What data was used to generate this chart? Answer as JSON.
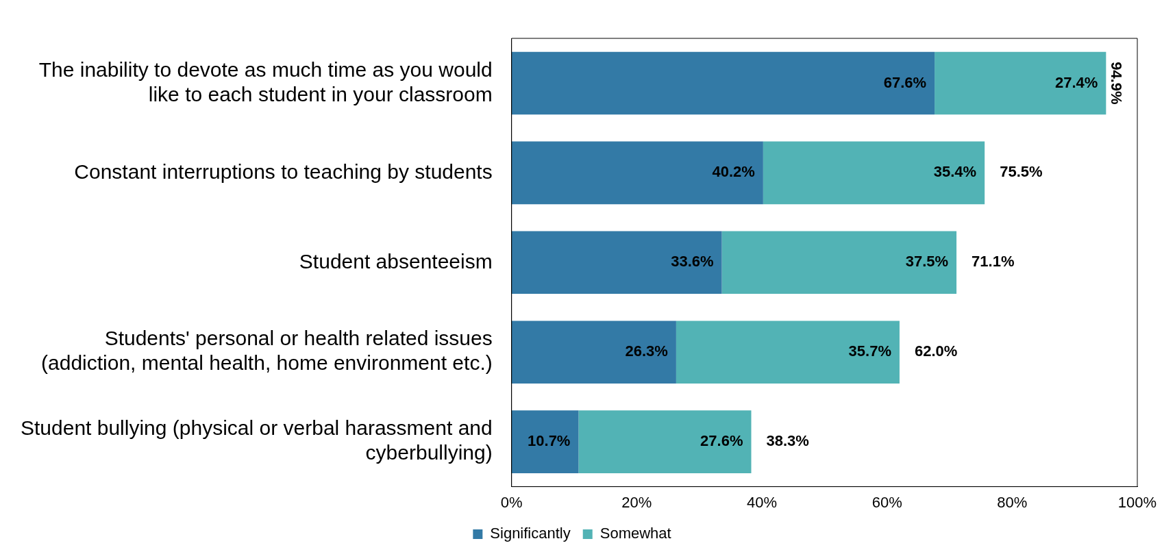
{
  "chart_data": {
    "type": "bar",
    "orientation": "horizontal",
    "stacked": true,
    "categories": [
      "The inability to devote as much time as you would like to each student in your classroom",
      "Constant interruptions to teaching by students",
      "Student absenteeism",
      "Students' personal or health related issues (addiction, mental health, home environment etc.)",
      "Student bullying (physical or verbal harassment and cyberbullying)"
    ],
    "series": [
      {
        "name": "Significantly",
        "color": "#337aa6",
        "values": [
          67.6,
          40.2,
          33.6,
          26.3,
          10.7
        ],
        "value_labels": [
          "67.6%",
          "40.2%",
          "33.6%",
          "26.3%",
          "10.7%"
        ]
      },
      {
        "name": "Somewhat",
        "color": "#52b3b5",
        "values": [
          27.4,
          35.4,
          37.5,
          35.7,
          27.6
        ],
        "value_labels": [
          "27.4%",
          "35.4%",
          "37.5%",
          "35.7%",
          "27.6%"
        ]
      }
    ],
    "totals": [
      "94.9%",
      "75.5%",
      "71.1%",
      "62.0%",
      "38.3%"
    ],
    "xlim": [
      0,
      100
    ],
    "xticks": [
      {
        "value": 0,
        "label": "0%"
      },
      {
        "value": 20,
        "label": "20%"
      },
      {
        "value": 40,
        "label": "40%"
      },
      {
        "value": 60,
        "label": "60%"
      },
      {
        "value": 80,
        "label": "80%"
      },
      {
        "value": 100,
        "label": "100%"
      }
    ],
    "grid": false,
    "legend": "bottom"
  }
}
